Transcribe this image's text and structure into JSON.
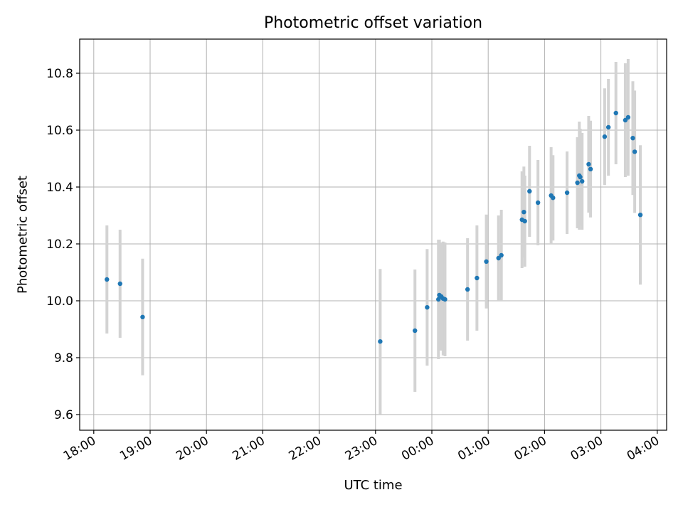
{
  "chart_data": {
    "type": "scatter",
    "title": "Photometric offset variation",
    "xlabel": "UTC time",
    "ylabel": "Photometric offset",
    "xlim": [
      "17:45",
      "04:10"
    ],
    "ylim": [
      9.545,
      10.92
    ],
    "x_ticks": [
      "18:00",
      "19:00",
      "20:00",
      "21:00",
      "22:00",
      "23:00",
      "00:00",
      "01:00",
      "02:00",
      "03:00",
      "04:00"
    ],
    "y_ticks": [
      "9.6",
      "9.8",
      "10.0",
      "10.2",
      "10.4",
      "10.6",
      "10.8"
    ],
    "grid": true,
    "point_color": "#1f77b4",
    "errorbar_color": "#d3d3d3",
    "points": [
      {
        "t": "18:14",
        "y": 10.075,
        "err": 0.19
      },
      {
        "t": "18:28",
        "y": 10.06,
        "err": 0.19
      },
      {
        "t": "18:52",
        "y": 9.943,
        "err": 0.205
      },
      {
        "t": "23:05",
        "y": 9.857,
        "err": 0.255
      },
      {
        "t": "23:42",
        "y": 9.895,
        "err": 0.215
      },
      {
        "t": "23:55",
        "y": 9.977,
        "err": 0.205
      },
      {
        "t": "00:07",
        "y": 10.005,
        "err": 0.21
      },
      {
        "t": "00:08",
        "y": 10.02,
        "err": 0.195
      },
      {
        "t": "00:10",
        "y": 10.015,
        "err": 0.19
      },
      {
        "t": "00:12",
        "y": 10.008,
        "err": 0.2
      },
      {
        "t": "00:14",
        "y": 10.005,
        "err": 0.2
      },
      {
        "t": "00:38",
        "y": 10.04,
        "err": 0.18
      },
      {
        "t": "00:48",
        "y": 10.08,
        "err": 0.185
      },
      {
        "t": "00:58",
        "y": 10.138,
        "err": 0.165
      },
      {
        "t": "01:11",
        "y": 10.15,
        "err": 0.15
      },
      {
        "t": "01:14",
        "y": 10.16,
        "err": 0.16
      },
      {
        "t": "01:36",
        "y": 10.285,
        "err": 0.17
      },
      {
        "t": "01:38",
        "y": 10.312,
        "err": 0.16
      },
      {
        "t": "01:39",
        "y": 10.28,
        "err": 0.16
      },
      {
        "t": "01:44",
        "y": 10.385,
        "err": 0.16
      },
      {
        "t": "01:53",
        "y": 10.345,
        "err": 0.15
      },
      {
        "t": "02:07",
        "y": 10.37,
        "err": 0.17
      },
      {
        "t": "02:09",
        "y": 10.362,
        "err": 0.15
      },
      {
        "t": "02:24",
        "y": 10.38,
        "err": 0.145
      },
      {
        "t": "02:35",
        "y": 10.415,
        "err": 0.16
      },
      {
        "t": "02:37",
        "y": 10.44,
        "err": 0.19
      },
      {
        "t": "02:38",
        "y": 10.435,
        "err": 0.17
      },
      {
        "t": "02:40",
        "y": 10.42,
        "err": 0.17
      },
      {
        "t": "02:47",
        "y": 10.48,
        "err": 0.17
      },
      {
        "t": "02:49",
        "y": 10.463,
        "err": 0.17
      },
      {
        "t": "03:04",
        "y": 10.577,
        "err": 0.17
      },
      {
        "t": "03:08",
        "y": 10.61,
        "err": 0.17
      },
      {
        "t": "03:16",
        "y": 10.66,
        "err": 0.18
      },
      {
        "t": "03:26",
        "y": 10.635,
        "err": 0.2
      },
      {
        "t": "03:29",
        "y": 10.645,
        "err": 0.205
      },
      {
        "t": "03:34",
        "y": 10.572,
        "err": 0.2
      },
      {
        "t": "03:36",
        "y": 10.524,
        "err": 0.215
      },
      {
        "t": "03:42",
        "y": 10.302,
        "err": 0.245
      }
    ]
  }
}
